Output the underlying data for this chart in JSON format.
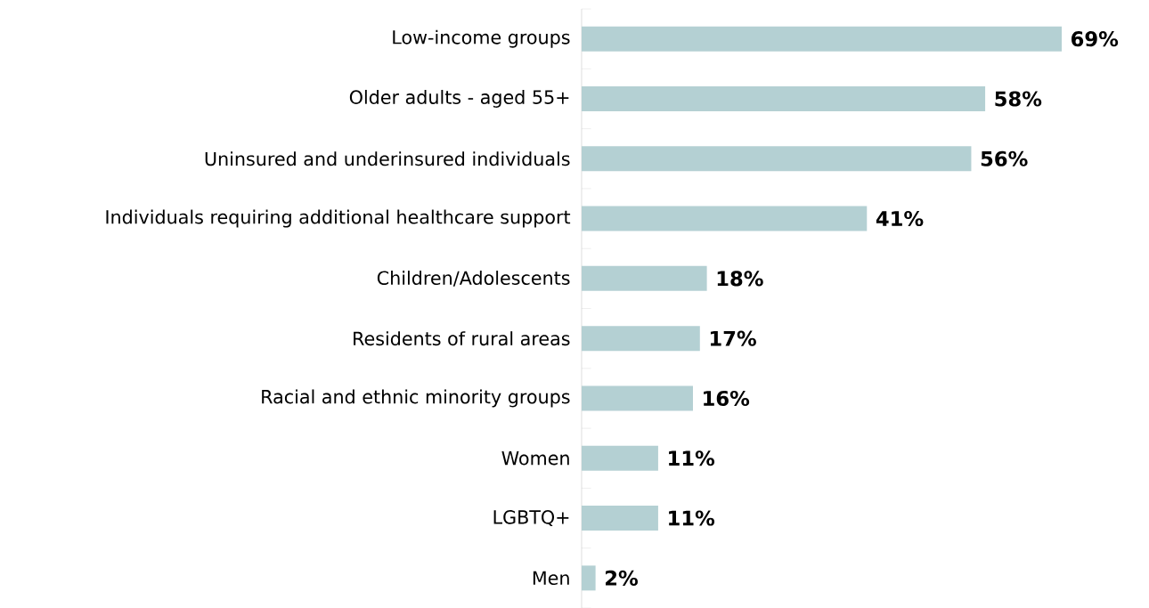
{
  "chart_data": {
    "type": "bar",
    "orientation": "horizontal",
    "tick_labels": "y",
    "categories": [
      "Low-income groups",
      "Older adults - aged 55+",
      "Uninsured and underinsured individuals",
      "Individuals requiring additional healthcare support",
      "Children/Adolescents",
      "Residents of rural areas",
      "Racial and ethnic minority groups",
      "Women",
      "LGBTQ+",
      "Men"
    ],
    "values": [
      69,
      58,
      56,
      41,
      18,
      17,
      16,
      11,
      11,
      2
    ],
    "value_labels": [
      "69%",
      "58%",
      "56%",
      "41%",
      "18%",
      "17%",
      "16%",
      "11%",
      "11%",
      "2%"
    ],
    "color": "#b4d0d3"
  }
}
